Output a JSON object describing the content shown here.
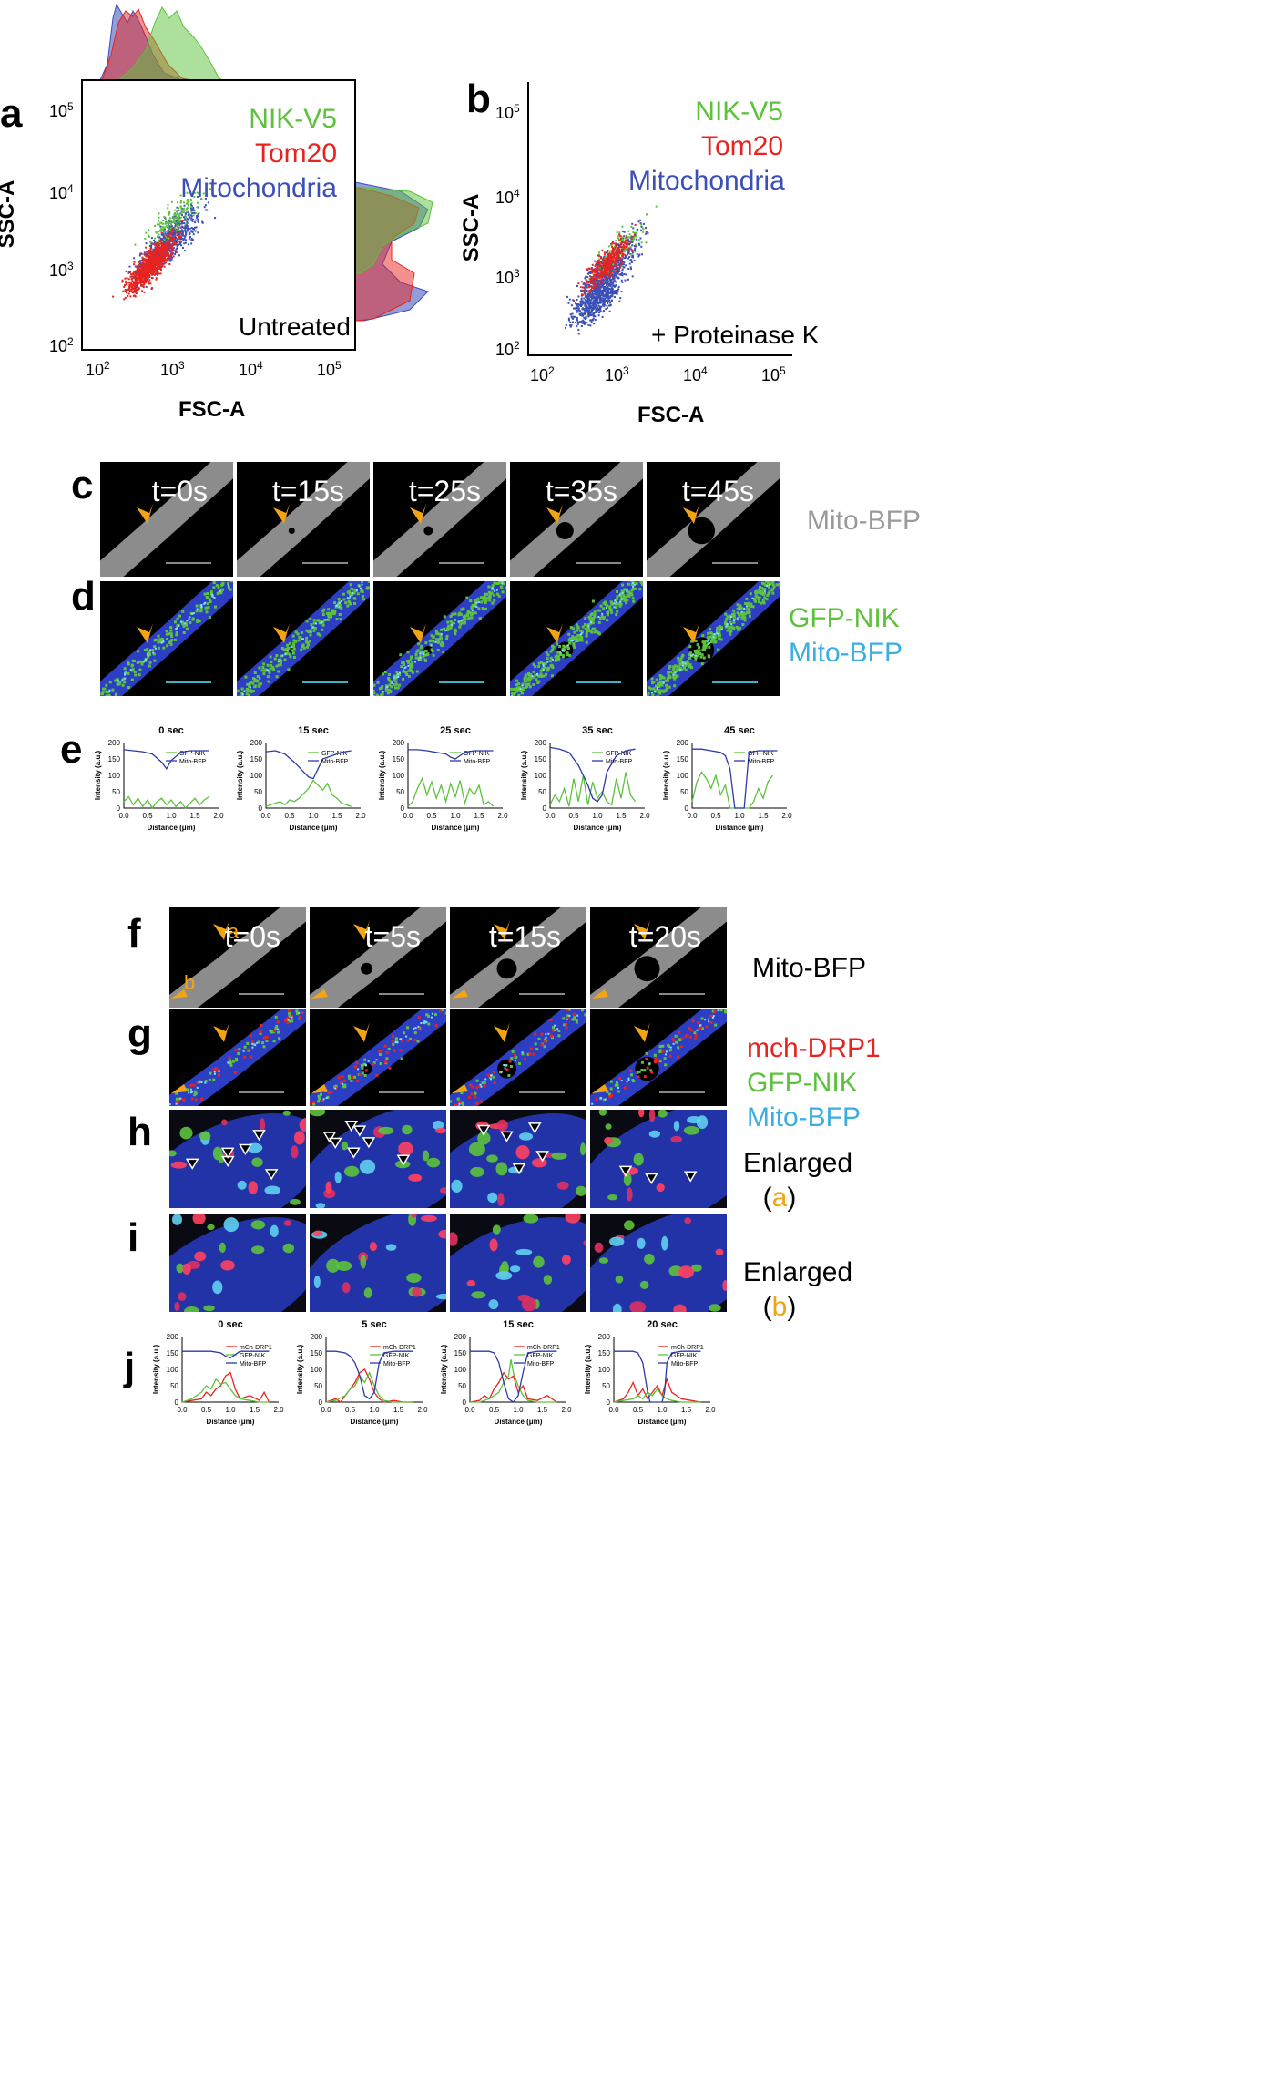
{
  "panel_letters": {
    "a": "a",
    "b": "b",
    "c": "c",
    "d": "d",
    "e": "e",
    "f": "f",
    "g": "g",
    "h": "h",
    "i": "i",
    "j": "j"
  },
  "flow": {
    "a": {
      "condition": "Untreated",
      "legend": [
        "NIK-V5",
        "Tom20",
        "Mitochondria"
      ],
      "xlabel": "FSC-A",
      "ylabel": "SSC-A"
    },
    "b": {
      "condition": "+ Proteinase K",
      "legend": [
        "NIK-V5",
        "Tom20",
        "Mitochondria"
      ],
      "xlabel": "FSC-A",
      "ylabel": "SSC-A"
    },
    "ticks_base": [
      "10",
      "10",
      "10",
      "10"
    ],
    "ticks_exp": [
      "2",
      "3",
      "4",
      "5"
    ]
  },
  "colors": {
    "green": "#5cc23b",
    "red": "#e8231f",
    "blue": "#3b4fb8",
    "gray": "#9a9a9a",
    "cyan": "#3aaee0",
    "arrow": "#f2a413"
  },
  "c": {
    "times": [
      "t=0s",
      "t=15s",
      "t=25s",
      "t=35s",
      "t=45s"
    ],
    "label": "Mito-BFP"
  },
  "d": {
    "labels": [
      "GFP-NIK",
      "Mito-BFP"
    ]
  },
  "f": {
    "times": [
      "t=0s",
      "t=5s",
      "t=15s",
      "t=20s"
    ],
    "label": "Mito-BFP",
    "marker_a": "a",
    "marker_b": "b"
  },
  "g": {
    "labels": [
      "mch-DRP1",
      "GFP-NIK",
      "Mito-BFP"
    ]
  },
  "h": {
    "label": "Enlarged",
    "paren_open": "(",
    "letter": "a",
    "paren_close": ")"
  },
  "i": {
    "label": "Enlarged",
    "paren_open": "(",
    "letter": "b",
    "paren_close": ")"
  },
  "chart_data": [
    {
      "type": "line",
      "title": "0 sec",
      "xlabel": "Distance (μm)",
      "ylabel": "Intensity (a.u.)",
      "xlim": [
        0,
        2
      ],
      "ylim": [
        0,
        200
      ],
      "xticks": [
        "0.0",
        "0.5",
        "1.0",
        "1.5",
        "2.0"
      ],
      "yticks": [
        "0",
        "50",
        "100",
        "150",
        "200"
      ],
      "series": [
        {
          "name": "GFP-NIK",
          "x": [
            0,
            0.1,
            0.2,
            0.3,
            0.4,
            0.5,
            0.6,
            0.7,
            0.8,
            0.9,
            1.0,
            1.1,
            1.2,
            1.3,
            1.4,
            1.5,
            1.6,
            1.7,
            1.8
          ],
          "values": [
            20,
            35,
            10,
            30,
            5,
            25,
            0,
            20,
            30,
            10,
            25,
            5,
            20,
            0,
            15,
            30,
            10,
            25,
            35
          ]
        },
        {
          "name": "Mito-BFP",
          "x": [
            0,
            0.2,
            0.4,
            0.6,
            0.8,
            0.9,
            1.0,
            1.2,
            1.4,
            1.6,
            1.8
          ],
          "values": [
            178,
            175,
            172,
            165,
            140,
            120,
            145,
            170,
            175,
            175,
            175
          ]
        }
      ]
    },
    {
      "type": "line",
      "title": "15 sec",
      "xlabel": "Distance (μm)",
      "ylabel": "Intensity (a.u.)",
      "xlim": [
        0,
        2
      ],
      "ylim": [
        0,
        200
      ],
      "xticks": [
        "0.0",
        "0.5",
        "1.0",
        "1.5",
        "2.0"
      ],
      "yticks": [
        "0",
        "50",
        "100",
        "150",
        "200"
      ],
      "series": [
        {
          "name": "GFP-NIK",
          "x": [
            0,
            0.1,
            0.2,
            0.3,
            0.4,
            0.5,
            0.6,
            0.7,
            0.8,
            0.9,
            1.0,
            1.1,
            1.2,
            1.3,
            1.4,
            1.5,
            1.6,
            1.7,
            1.8
          ],
          "values": [
            5,
            10,
            15,
            20,
            10,
            25,
            20,
            30,
            45,
            60,
            85,
            70,
            55,
            75,
            40,
            30,
            15,
            10,
            5
          ]
        },
        {
          "name": "Mito-BFP",
          "x": [
            0,
            0.2,
            0.4,
            0.6,
            0.8,
            0.9,
            1.0,
            1.1,
            1.2,
            1.4,
            1.6,
            1.8
          ],
          "values": [
            172,
            175,
            165,
            140,
            110,
            95,
            90,
            120,
            150,
            160,
            170,
            175
          ]
        }
      ]
    },
    {
      "type": "line",
      "title": "25 sec",
      "xlabel": "Distance (μm)",
      "ylabel": "Intensity (a.u.)",
      "xlim": [
        0,
        2
      ],
      "ylim": [
        0,
        200
      ],
      "xticks": [
        "0.0",
        "0.5",
        "1.0",
        "1.5",
        "2.0"
      ],
      "yticks": [
        "0",
        "50",
        "100",
        "150",
        "200"
      ],
      "series": [
        {
          "name": "GFP-NIK",
          "x": [
            0,
            0.1,
            0.2,
            0.3,
            0.4,
            0.5,
            0.6,
            0.7,
            0.8,
            0.9,
            1.0,
            1.1,
            1.2,
            1.3,
            1.4,
            1.5,
            1.6,
            1.7,
            1.8
          ],
          "values": [
            5,
            20,
            60,
            90,
            40,
            80,
            30,
            70,
            20,
            75,
            35,
            85,
            15,
            60,
            40,
            70,
            10,
            20,
            5
          ]
        },
        {
          "name": "Mito-BFP",
          "x": [
            0,
            0.2,
            0.4,
            0.6,
            0.8,
            0.9,
            1.0,
            1.1,
            1.2,
            1.4,
            1.6,
            1.8
          ],
          "values": [
            178,
            178,
            175,
            170,
            165,
            155,
            150,
            160,
            170,
            175,
            175,
            175
          ]
        }
      ]
    },
    {
      "type": "line",
      "title": "35 sec",
      "xlabel": "Distance (μm)",
      "ylabel": "Intensity (a.u.)",
      "xlim": [
        0,
        2
      ],
      "ylim": [
        0,
        200
      ],
      "xticks": [
        "0.0",
        "0.5",
        "1.0",
        "1.5",
        "2.0"
      ],
      "yticks": [
        "0",
        "50",
        "100",
        "150",
        "200"
      ],
      "series": [
        {
          "name": "GFP-NIK",
          "x": [
            0,
            0.1,
            0.2,
            0.3,
            0.4,
            0.5,
            0.6,
            0.7,
            0.8,
            0.9,
            1.0,
            1.1,
            1.2,
            1.3,
            1.4,
            1.5,
            1.6,
            1.7,
            1.8
          ],
          "values": [
            10,
            40,
            20,
            60,
            5,
            90,
            20,
            100,
            10,
            80,
            30,
            50,
            20,
            10,
            90,
            30,
            110,
            40,
            20
          ]
        },
        {
          "name": "Mito-BFP",
          "x": [
            0,
            0.2,
            0.4,
            0.6,
            0.8,
            0.9,
            1.0,
            1.1,
            1.2,
            1.4,
            1.6,
            1.8
          ],
          "values": [
            185,
            180,
            170,
            130,
            70,
            30,
            20,
            40,
            110,
            160,
            175,
            180
          ]
        }
      ]
    },
    {
      "type": "line",
      "title": "45 sec",
      "xlabel": "Distance (μm)",
      "ylabel": "Intensity (a.u.)",
      "xlim": [
        0,
        2
      ],
      "ylim": [
        0,
        200
      ],
      "xticks": [
        "0.0",
        "0.5",
        "1.0",
        "1.5",
        "2.0"
      ],
      "yticks": [
        "0",
        "50",
        "100",
        "150",
        "200"
      ],
      "series": [
        {
          "name": "GFP-NIK",
          "x": [
            0,
            0.1,
            0.2,
            0.3,
            0.4,
            0.5,
            0.6,
            0.7,
            0.8,
            0.9,
            1.0,
            1.1,
            1.2,
            1.3,
            1.4,
            1.5,
            1.6,
            1.7
          ],
          "values": [
            20,
            80,
            110,
            90,
            60,
            100,
            40,
            70,
            0,
            0,
            0,
            0,
            0,
            20,
            60,
            30,
            80,
            100
          ]
        },
        {
          "name": "Mito-BFP",
          "x": [
            0,
            0.2,
            0.4,
            0.6,
            0.7,
            0.8,
            0.85,
            0.9,
            1.0,
            1.1,
            1.2,
            1.4,
            1.6,
            1.8
          ],
          "values": [
            180,
            180,
            175,
            170,
            160,
            120,
            60,
            0,
            0,
            0,
            170,
            175,
            175,
            175
          ]
        }
      ]
    },
    {
      "type": "line",
      "title": "0 sec",
      "xlabel": "Distance (μm)",
      "ylabel": "Intensity (a.u.)",
      "xlim": [
        0,
        2
      ],
      "ylim": [
        0,
        200
      ],
      "xticks": [
        "0.0",
        "0.5",
        "1.0",
        "1.5",
        "2.0"
      ],
      "yticks": [
        "0",
        "50",
        "100",
        "150",
        "200"
      ],
      "series": [
        {
          "name": "mCh-DRP1",
          "x": [
            0,
            0.2,
            0.4,
            0.5,
            0.6,
            0.7,
            0.8,
            0.9,
            1.0,
            1.1,
            1.2,
            1.4,
            1.6,
            1.7,
            1.8
          ],
          "values": [
            0,
            5,
            10,
            30,
            20,
            40,
            50,
            80,
            90,
            40,
            10,
            20,
            5,
            30,
            0
          ]
        },
        {
          "name": "GFP-NIK",
          "x": [
            0,
            0.2,
            0.4,
            0.5,
            0.6,
            0.7,
            0.8,
            0.9,
            1.0,
            1.1,
            1.2,
            1.4,
            1.6,
            1.8
          ],
          "values": [
            0,
            10,
            30,
            50,
            40,
            70,
            55,
            60,
            40,
            20,
            10,
            5,
            0,
            0
          ]
        },
        {
          "name": "Mito-BFP",
          "x": [
            0,
            0.2,
            0.4,
            0.6,
            0.8,
            0.9,
            1.0,
            1.1,
            1.2,
            1.4,
            1.6,
            1.8
          ],
          "values": [
            155,
            155,
            155,
            155,
            150,
            140,
            135,
            145,
            155,
            155,
            155,
            155
          ]
        }
      ]
    },
    {
      "type": "line",
      "title": "5 sec",
      "xlabel": "Distance (μm)",
      "ylabel": "Intensity (a.u.)",
      "xlim": [
        0,
        2
      ],
      "ylim": [
        0,
        200
      ],
      "xticks": [
        "0.0",
        "0.5",
        "1.0",
        "1.5",
        "2.0"
      ],
      "yticks": [
        "0",
        "50",
        "100",
        "150",
        "200"
      ],
      "series": [
        {
          "name": "mCh-DRP1",
          "x": [
            0,
            0.2,
            0.3,
            0.4,
            0.5,
            0.6,
            0.7,
            0.8,
            0.9,
            1.0,
            1.1,
            1.2,
            1.4,
            1.6,
            1.8
          ],
          "values": [
            0,
            10,
            0,
            20,
            40,
            60,
            90,
            100,
            70,
            30,
            10,
            0,
            5,
            0,
            0
          ]
        },
        {
          "name": "GFP-NIK",
          "x": [
            0,
            0.2,
            0.4,
            0.5,
            0.6,
            0.7,
            0.8,
            0.9,
            1.0,
            1.1,
            1.2,
            1.4,
            1.6,
            1.8
          ],
          "values": [
            0,
            5,
            20,
            40,
            50,
            80,
            60,
            90,
            50,
            20,
            5,
            0,
            0,
            0
          ]
        },
        {
          "name": "Mito-BFP",
          "x": [
            0,
            0.2,
            0.4,
            0.5,
            0.6,
            0.7,
            0.8,
            0.9,
            1.0,
            1.1,
            1.2,
            1.4,
            1.6,
            1.8
          ],
          "values": [
            155,
            155,
            150,
            140,
            120,
            80,
            20,
            10,
            30,
            120,
            150,
            155,
            155,
            155
          ]
        }
      ]
    },
    {
      "type": "line",
      "title": "15 sec",
      "xlabel": "Distance (μm)",
      "ylabel": "Intensity (a.u.)",
      "xlim": [
        0,
        2
      ],
      "ylim": [
        0,
        200
      ],
      "xticks": [
        "0.0",
        "0.5",
        "1.0",
        "1.5",
        "2.0"
      ],
      "yticks": [
        "0",
        "50",
        "100",
        "150",
        "200"
      ],
      "series": [
        {
          "name": "mCh-DRP1",
          "x": [
            0,
            0.2,
            0.3,
            0.4,
            0.5,
            0.6,
            0.7,
            0.8,
            0.9,
            1.0,
            1.1,
            1.2,
            1.4,
            1.6,
            1.8
          ],
          "values": [
            0,
            5,
            20,
            10,
            40,
            60,
            90,
            70,
            80,
            30,
            50,
            10,
            5,
            20,
            0
          ]
        },
        {
          "name": "GFP-NIK",
          "x": [
            0,
            0.2,
            0.4,
            0.5,
            0.6,
            0.7,
            0.8,
            0.85,
            0.9,
            1.0,
            1.1,
            1.2,
            1.4,
            1.6,
            1.8
          ],
          "values": [
            0,
            0,
            10,
            20,
            30,
            60,
            80,
            130,
            90,
            50,
            20,
            5,
            0,
            0,
            0
          ]
        },
        {
          "name": "Mito-BFP",
          "x": [
            0,
            0.2,
            0.4,
            0.5,
            0.6,
            0.7,
            0.8,
            0.9,
            1.0,
            1.1,
            1.2,
            1.4,
            1.6,
            1.8
          ],
          "values": [
            155,
            155,
            155,
            150,
            120,
            60,
            10,
            0,
            20,
            90,
            150,
            155,
            155,
            155
          ]
        }
      ]
    },
    {
      "type": "line",
      "title": "20 sec",
      "xlabel": "Distance (μm)",
      "ylabel": "Intensity (a.u.)",
      "xlim": [
        0,
        2
      ],
      "ylim": [
        0,
        200
      ],
      "xticks": [
        "0.0",
        "0.5",
        "1.0",
        "1.5",
        "2.0"
      ],
      "yticks": [
        "0",
        "50",
        "100",
        "150",
        "200"
      ],
      "series": [
        {
          "name": "mCh-DRP1",
          "x": [
            0,
            0.2,
            0.3,
            0.4,
            0.5,
            0.6,
            0.7,
            0.8,
            0.9,
            1.0,
            1.1,
            1.2,
            1.4,
            1.6,
            1.8
          ],
          "values": [
            0,
            10,
            30,
            60,
            20,
            40,
            10,
            30,
            50,
            20,
            70,
            30,
            10,
            5,
            0
          ]
        },
        {
          "name": "GFP-NIK",
          "x": [
            0,
            0.2,
            0.4,
            0.5,
            0.6,
            0.7,
            0.8,
            0.9,
            1.0,
            1.1,
            1.2,
            1.4,
            1.6,
            1.8
          ],
          "values": [
            0,
            5,
            10,
            20,
            10,
            30,
            20,
            40,
            20,
            10,
            5,
            0,
            0,
            0
          ]
        },
        {
          "name": "Mito-BFP",
          "x": [
            0,
            0.2,
            0.4,
            0.5,
            0.6,
            0.7,
            0.75,
            0.8,
            0.9,
            1.0,
            1.05,
            1.1,
            1.2,
            1.4,
            1.6,
            1.8
          ],
          "values": [
            155,
            155,
            155,
            150,
            120,
            30,
            0,
            0,
            0,
            0,
            30,
            120,
            150,
            155,
            155,
            155
          ]
        }
      ]
    }
  ]
}
